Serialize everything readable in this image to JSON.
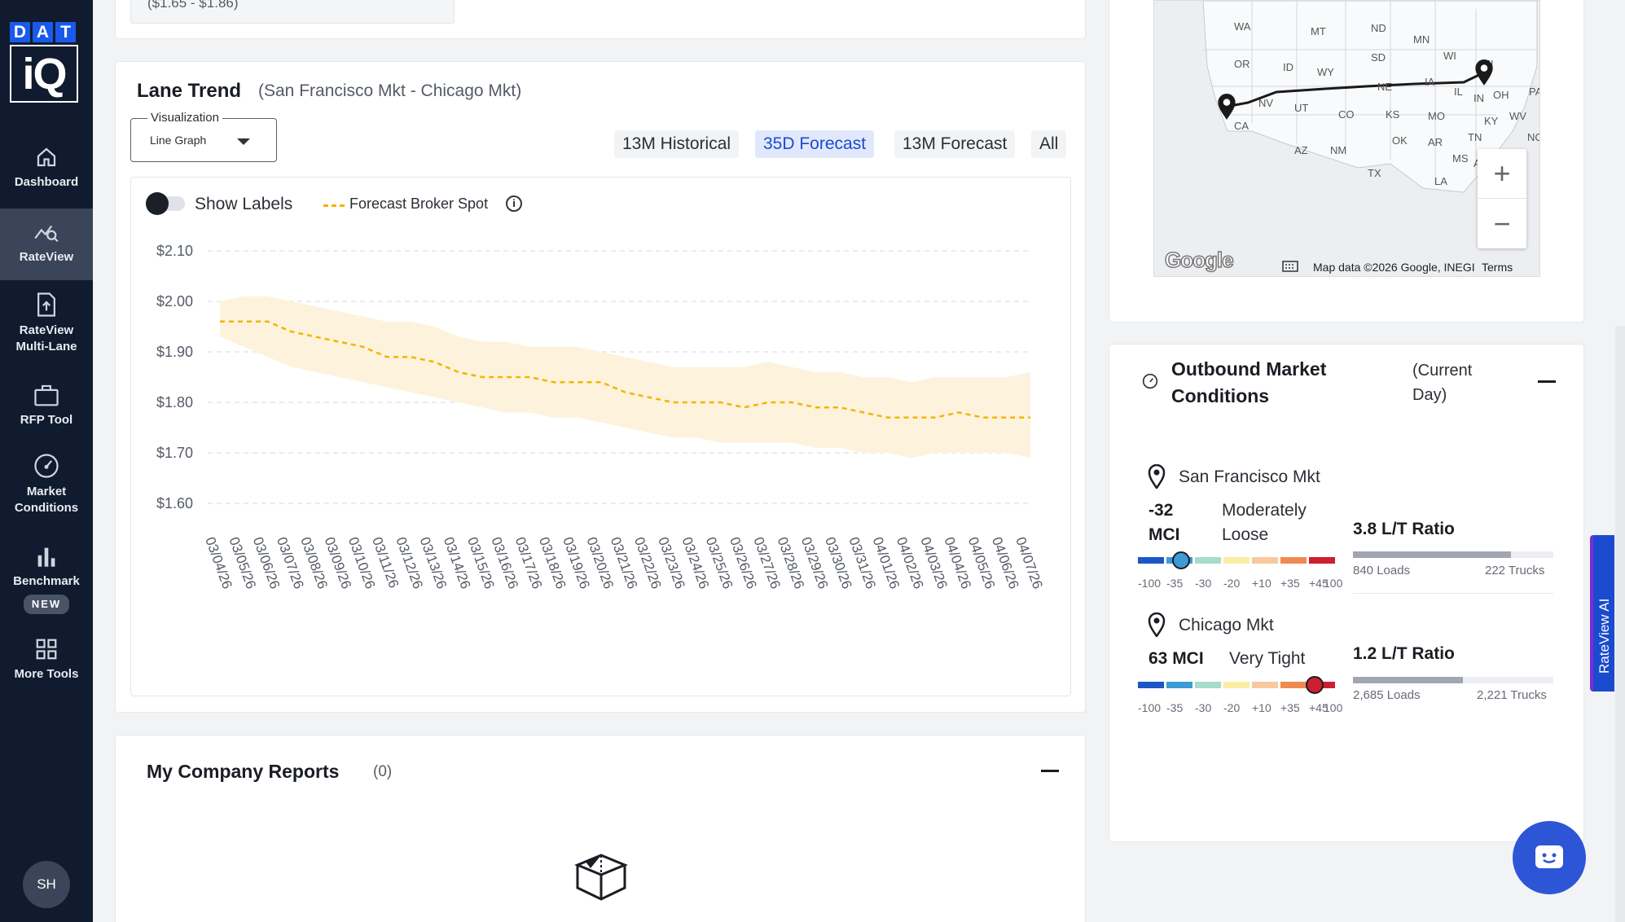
{
  "sidebar": {
    "logo_top": "DAT",
    "logo_bottom": "iQ",
    "items": [
      {
        "label": "Dashboard"
      },
      {
        "label": "RateView"
      },
      {
        "label": "RateView Multi-Lane"
      },
      {
        "label": "RFP Tool"
      },
      {
        "label": "Market Conditions"
      },
      {
        "label": "Benchmark",
        "badge": "NEW"
      },
      {
        "label": "More Tools"
      }
    ],
    "user_initials": "SH"
  },
  "top_card": {
    "range_text": "($1.65 - $1.86)"
  },
  "lane_trend": {
    "title": "Lane Trend",
    "subtitle": "(San Francisco Mkt - Chicago Mkt)",
    "visualization_label": "Visualization",
    "visualization_value": "Line Graph",
    "ranges": [
      "13M Historical",
      "35D Forecast",
      "13M Forecast",
      "All"
    ],
    "active_range": "35D Forecast",
    "show_labels": "Show Labels",
    "legend": "Forecast Broker Spot"
  },
  "chart_data": {
    "type": "line",
    "x": [
      "03/04/26",
      "03/05/26",
      "03/06/26",
      "03/07/26",
      "03/08/26",
      "03/09/26",
      "03/10/26",
      "03/11/26",
      "03/12/26",
      "03/13/26",
      "03/14/26",
      "03/15/26",
      "03/16/26",
      "03/17/26",
      "03/18/26",
      "03/19/26",
      "03/20/26",
      "03/21/26",
      "03/22/26",
      "03/23/26",
      "03/24/26",
      "03/25/26",
      "03/26/26",
      "03/27/26",
      "03/28/26",
      "03/29/26",
      "03/30/26",
      "03/31/26",
      "04/01/26",
      "04/02/26",
      "04/03/26",
      "04/04/26",
      "04/05/26",
      "04/06/26",
      "04/07/26"
    ],
    "series": [
      {
        "name": "Forecast Broker Spot",
        "color": "#f4b400",
        "values": [
          1.96,
          1.96,
          1.96,
          1.94,
          1.93,
          1.92,
          1.91,
          1.89,
          1.89,
          1.88,
          1.86,
          1.85,
          1.85,
          1.85,
          1.84,
          1.84,
          1.84,
          1.82,
          1.81,
          1.8,
          1.8,
          1.8,
          1.79,
          1.8,
          1.8,
          1.79,
          1.79,
          1.78,
          1.77,
          1.77,
          1.77,
          1.78,
          1.77,
          1.77,
          1.77
        ],
        "upper": [
          2.0,
          2.01,
          2.01,
          2.0,
          1.99,
          1.98,
          1.97,
          1.96,
          1.96,
          1.95,
          1.93,
          1.92,
          1.92,
          1.91,
          1.91,
          1.91,
          1.9,
          1.89,
          1.88,
          1.87,
          1.87,
          1.87,
          1.87,
          1.88,
          1.87,
          1.86,
          1.86,
          1.85,
          1.85,
          1.84,
          1.85,
          1.85,
          1.85,
          1.85,
          1.86
        ],
        "lower": [
          1.93,
          1.91,
          1.89,
          1.87,
          1.86,
          1.85,
          1.84,
          1.83,
          1.82,
          1.81,
          1.8,
          1.79,
          1.78,
          1.78,
          1.77,
          1.77,
          1.76,
          1.75,
          1.74,
          1.73,
          1.73,
          1.72,
          1.72,
          1.72,
          1.72,
          1.71,
          1.71,
          1.7,
          1.7,
          1.69,
          1.7,
          1.7,
          1.7,
          1.7,
          1.69
        ]
      }
    ],
    "y_ticks": [
      "$2.10",
      "$2.00",
      "$1.90",
      "$1.80",
      "$1.70",
      "$1.60"
    ],
    "ylim": [
      1.6,
      2.1
    ],
    "grid": true,
    "band_color": "#fdf3dc"
  },
  "reports": {
    "title": "My Company Reports",
    "count": "(0)"
  },
  "map": {
    "state_labels": [
      "WA",
      "MT",
      "ND",
      "MN",
      "OR",
      "ID",
      "WY",
      "SD",
      "WI",
      "MI",
      "NE",
      "IA",
      "NV",
      "UT",
      "CO",
      "KS",
      "MO",
      "IL",
      "IN",
      "OH",
      "CA",
      "AZ",
      "NM",
      "OK",
      "AR",
      "TN",
      "KY",
      "WV",
      "TX",
      "LA",
      "MS",
      "AL",
      "PA",
      "NC"
    ],
    "credit": "Map data ©2026 Google, INEGI",
    "terms": "Terms",
    "google": "Google"
  },
  "market_conditions": {
    "title": "Outbound Market Conditions",
    "subtitle": "(Current Day)",
    "scale_labels": [
      "-100",
      "-35",
      "-30",
      "-20",
      "+10",
      "+35",
      "+45",
      "100"
    ],
    "scale_colors": [
      "#1c56c7",
      "#3d9bd5",
      "#a7dcc9",
      "#fbeda3",
      "#f9c8a0",
      "#f08a52",
      "#cc1f2f"
    ],
    "markets": [
      {
        "name": "San Francisco Mkt",
        "mci": "-32 MCI",
        "condition": "Moderately Loose",
        "ratio": "3.8 L/T Ratio",
        "loads": "840 Loads",
        "trucks": "222 Trucks",
        "fill": 0.79,
        "marker_color": "#3d9bd5",
        "mci_value": -32
      },
      {
        "name": "Chicago Mkt",
        "mci": "63 MCI",
        "condition": "Very Tight",
        "ratio": "1.2 L/T Ratio",
        "loads": "2,685 Loads",
        "trucks": "2,221 Trucks",
        "fill": 0.55,
        "marker_color": "#cc1f2f",
        "mci_value": 63
      }
    ]
  },
  "ai_tab": "RateView AI"
}
